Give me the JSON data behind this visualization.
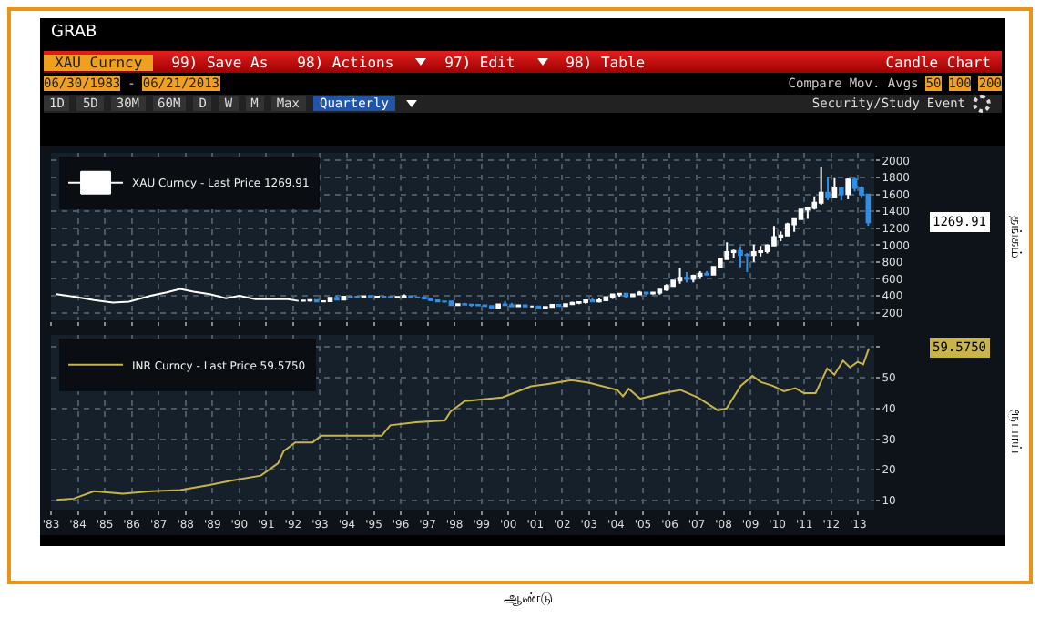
{
  "chart_data": [
    {
      "type": "candlestick",
      "title": "GRAB",
      "ylabel": "தங்கம்",
      "legend": "top left",
      "grid": true,
      "tick_labels": "y",
      "xlim": [
        1983,
        2013.6
      ],
      "xticks": [
        {
          "value": 1983,
          "label": null
        },
        {
          "value": 1984,
          "label": null
        },
        {
          "value": 1985,
          "label": null
        },
        {
          "value": 1986,
          "label": null
        },
        {
          "value": 1987,
          "label": null
        },
        {
          "value": 1988,
          "label": null
        },
        {
          "value": 1989,
          "label": null
        },
        {
          "value": 1990,
          "label": null
        },
        {
          "value": 1991,
          "label": null
        },
        {
          "value": 1992,
          "label": null
        },
        {
          "value": 1993,
          "label": null
        },
        {
          "value": 1994,
          "label": null
        },
        {
          "value": 1995,
          "label": null
        },
        {
          "value": 1996,
          "label": null
        },
        {
          "value": 1997,
          "label": null
        },
        {
          "value": 1998,
          "label": null
        },
        {
          "value": 1999,
          "label": null
        },
        {
          "value": 2000,
          "label": null
        },
        {
          "value": 2001,
          "label": null
        },
        {
          "value": 2002,
          "label": null
        },
        {
          "value": 2003,
          "label": null
        },
        {
          "value": 2004,
          "label": null
        },
        {
          "value": 2005,
          "label": null
        },
        {
          "value": 2006,
          "label": null
        },
        {
          "value": 2007,
          "label": null
        },
        {
          "value": 2008,
          "label": null
        },
        {
          "value": 2009,
          "label": null
        },
        {
          "value": 2010,
          "label": null
        },
        {
          "value": 2011,
          "label": null
        },
        {
          "value": 2012,
          "label": null
        },
        {
          "value": 2013,
          "label": null
        }
      ],
      "ylim": [
        110,
        2090
      ],
      "yticks": [
        200,
        400,
        600,
        800,
        1000,
        1200,
        1400,
        1600,
        1800,
        2000
      ],
      "annotations": [
        "XAU Curncy",
        "99) Save As",
        "98) Actions",
        "97) Edit",
        "98) Table",
        "Candle Chart",
        "06/30/1983",
        "-",
        "06/21/2013",
        "Compare",
        "Mov. Avgs",
        "50",
        "100",
        "200",
        "1D",
        "5D",
        "30M",
        "60M",
        "D",
        "W",
        "M",
        "Max",
        "Quarterly",
        "Security/Study",
        "Event",
        "1269.91"
      ],
      "series": [
        {
          "type": "line",
          "color": "#ffffff",
          "x": [
            1983.2,
            1983.85,
            1984.6,
            1985.3,
            1985.9,
            1986.7,
            1987.3,
            1987.8,
            1988.3,
            1988.9,
            1989.5,
            1990.0,
            1990.6,
            1991.2,
            1991.8,
            1992.2
          ],
          "values": [
            420,
            390,
            350,
            320,
            330,
            400,
            440,
            480,
            450,
            420,
            370,
            400,
            360,
            360,
            360,
            340
          ]
        },
        {
          "name": "XAU Curncy - Last Price 1269.91",
          "colors": [
            "#ffffff",
            "#ffffff",
            "#2f8fe8",
            "#ffffff",
            "#ffffff",
            "#2f8fe8",
            "#ffffff",
            "#2f8fe8",
            "#2f8fe8",
            "#ffffff",
            "#2f8fe8",
            "#ffffff",
            "#2f8fe8",
            "#2f8fe8",
            "#ffffff",
            "#ffffff",
            "#2f8fe8",
            "#2f8fe8",
            "#2f8fe8",
            "#2f8fe8",
            "#2f8fe8",
            "#2f8fe8",
            "#2f8fe8",
            "#ffffff",
            "#2f8fe8",
            "#2f8fe8",
            "#2f8fe8",
            "#2f8fe8",
            "#2f8fe8",
            "#ffffff",
            "#2f8fe8",
            "#2f8fe8",
            "#ffffff",
            "#2f8fe8",
            "#ffffff",
            "#2f8fe8",
            "#ffffff",
            "#ffffff",
            "#2f8fe8",
            "#ffffff",
            "#ffffff",
            "#ffffff",
            "#ffffff",
            "#2f8fe8",
            "#ffffff",
            "#ffffff",
            "#ffffff",
            "#ffffff",
            "#2f8fe8",
            "#ffffff",
            "#ffffff",
            "#2f8fe8",
            "#ffffff",
            "#ffffff",
            "#ffffff",
            "#ffffff",
            "#ffffff",
            "#2f8fe8",
            "#ffffff",
            "#ffffff",
            "#2f8fe8",
            "#ffffff",
            "#ffffff",
            "#ffffff",
            "#ffffff",
            "#2f8fe8",
            "#2f8fe8",
            "#ffffff",
            "#ffffff",
            "#ffffff",
            "#ffffff",
            "#ffffff",
            "#ffffff",
            "#ffffff",
            "#ffffff",
            "#ffffff",
            "#ffffff",
            "#ffffff",
            "#2f8fe8",
            "#ffffff",
            "#2f8fe8",
            "#ffffff",
            "#2f8fe8",
            "#2f8fe8",
            "#2f8fe8"
          ],
          "x": [
            1992.375,
            1992.625,
            1992.875,
            1993.125,
            1993.375,
            1993.625,
            1993.875,
            1994.125,
            1994.375,
            1994.625,
            1994.875,
            1995.125,
            1995.375,
            1995.625,
            1995.875,
            1996.125,
            1996.375,
            1996.625,
            1996.875,
            1997.125,
            1997.375,
            1997.625,
            1997.875,
            1998.125,
            1998.375,
            1998.625,
            1998.875,
            1999.125,
            1999.375,
            1999.625,
            1999.875,
            2000.125,
            2000.375,
            2000.625,
            2000.875,
            2001.125,
            2001.375,
            2001.625,
            2001.875,
            2002.125,
            2002.375,
            2002.625,
            2002.875,
            2003.125,
            2003.375,
            2003.625,
            2003.875,
            2004.125,
            2004.375,
            2004.625,
            2004.875,
            2005.125,
            2005.375,
            2005.625,
            2005.875,
            2006.125,
            2006.375,
            2006.625,
            2006.875,
            2007.125,
            2007.375,
            2007.625,
            2007.875,
            2008.125,
            2008.375,
            2008.625,
            2008.875,
            2009.125,
            2009.375,
            2009.625,
            2009.875,
            2010.125,
            2010.375,
            2010.625,
            2010.875,
            2011.125,
            2011.375,
            2011.625,
            2011.875,
            2012.125,
            2012.375,
            2012.625,
            2012.875,
            2013.125,
            2013.375
          ],
          "ohlc": [
            [
              341,
              346,
              334,
              343
            ],
            [
              343,
              359,
              330,
              349
            ],
            [
              349,
              351,
              330,
              333
            ],
            [
              333,
              339,
              326,
              337
            ],
            [
              337,
              382,
              336,
              377
            ],
            [
              377,
              409,
              345,
              355
            ],
            [
              355,
              392,
              350,
              391
            ],
            [
              391,
              396,
              373,
              390
            ],
            [
              390,
              396,
              373,
              386
            ],
            [
              386,
              398,
              379,
              394
            ],
            [
              394,
              398,
              378,
              383
            ],
            [
              383,
              395,
              372,
              391
            ],
            [
              391,
              396,
              381,
              387
            ],
            [
              387,
              391,
              380,
              384
            ],
            [
              384,
              395,
              380,
              387
            ],
            [
              387,
              417,
              385,
              396
            ],
            [
              396,
              397,
              378,
              382
            ],
            [
              382,
              390,
              377,
              379
            ],
            [
              379,
              387,
              366,
              369
            ],
            [
              369,
              370,
              340,
              348
            ],
            [
              348,
              354,
              330,
              334
            ],
            [
              334,
              339,
              318,
              332
            ],
            [
              332,
              336,
              283,
              290
            ],
            [
              290,
              305,
              280,
              301
            ],
            [
              301,
              316,
              290,
              296
            ],
            [
              296,
              300,
              271,
              293
            ],
            [
              293,
              300,
              286,
              288
            ],
            [
              288,
              292,
              279,
              280
            ],
            [
              280,
              291,
              257,
              261
            ],
            [
              261,
              307,
              251,
              299
            ],
            [
              299,
              339,
              288,
              290
            ],
            [
              290,
              316,
              278,
              278
            ],
            [
              278,
              294,
              270,
              288
            ],
            [
              288,
              290,
              268,
              273
            ],
            [
              273,
              275,
              263,
              273
            ],
            [
              273,
              273,
              255,
              258
            ],
            [
              258,
              280,
              256,
              270
            ],
            [
              270,
              298,
              264,
              293
            ],
            [
              293,
              293,
              273,
              279
            ],
            [
              279,
              305,
              277,
              302
            ],
            [
              302,
              330,
              300,
              318
            ],
            [
              318,
              326,
              300,
              324
            ],
            [
              324,
              350,
              307,
              347
            ],
            [
              347,
              383,
              323,
              334
            ],
            [
              334,
              372,
              320,
              346
            ],
            [
              346,
              391,
              341,
              385
            ],
            [
              385,
              417,
              364,
              416
            ],
            [
              416,
              430,
              390,
              424
            ],
            [
              424,
              431,
              372,
              394
            ],
            [
              394,
              420,
              387,
              416
            ],
            [
              416,
              456,
              406,
              438
            ],
            [
              438,
              446,
              411,
              428
            ],
            [
              428,
              440,
              413,
              437
            ],
            [
              437,
              474,
              414,
              473
            ],
            [
              473,
              538,
              457,
              517
            ],
            [
              517,
              584,
              517,
              582
            ],
            [
              582,
              730,
              543,
              614
            ],
            [
              614,
              680,
              560,
              599
            ],
            [
              599,
              650,
              560,
              636
            ],
            [
              636,
              690,
              600,
              662
            ],
            [
              662,
              692,
              640,
              650
            ],
            [
              650,
              746,
              642,
              743
            ],
            [
              743,
              842,
              722,
              834
            ],
            [
              834,
              1032,
              833,
              916
            ],
            [
              916,
              947,
              845,
              930
            ],
            [
              930,
              988,
              736,
              884
            ],
            [
              884,
              905,
              681,
              882
            ],
            [
              882,
              1007,
              801,
              916
            ],
            [
              916,
              990,
              865,
              927
            ],
            [
              927,
              1011,
              902,
              996
            ],
            [
              996,
              1227,
              996,
              1096
            ],
            [
              1096,
              1162,
              1045,
              1113
            ],
            [
              1113,
              1265,
              1106,
              1244
            ],
            [
              1244,
              1316,
              1157,
              1307
            ],
            [
              1307,
              1431,
              1307,
              1421
            ],
            [
              1421,
              1447,
              1309,
              1439
            ],
            [
              1439,
              1577,
              1420,
              1500
            ],
            [
              1500,
              1921,
              1478,
              1620
            ],
            [
              1620,
              1803,
              1531,
              1564
            ],
            [
              1564,
              1791,
              1563,
              1669
            ],
            [
              1669,
              1679,
              1527,
              1604
            ],
            [
              1604,
              1788,
              1540,
              1776
            ],
            [
              1776,
              1796,
              1635,
              1675
            ],
            [
              1675,
              1694,
              1555,
              1597
            ],
            [
              1597,
              1605,
              1230,
              1269.91
            ]
          ]
        }
      ]
    },
    {
      "type": "line",
      "xlabel": "ஆண்டு",
      "ylabel": "ரூபாய்",
      "legend": "top left",
      "grid": true,
      "xlim": [
        1983,
        2013.6
      ],
      "xticks": [
        {
          "value": 1983,
          "label": "'83"
        },
        {
          "value": 1984,
          "label": "'84"
        },
        {
          "value": 1985,
          "label": "'85"
        },
        {
          "value": 1986,
          "label": "'86"
        },
        {
          "value": 1987,
          "label": "'87"
        },
        {
          "value": 1988,
          "label": "'88"
        },
        {
          "value": 1989,
          "label": "'89"
        },
        {
          "value": 1990,
          "label": "'90"
        },
        {
          "value": 1991,
          "label": "'91"
        },
        {
          "value": 1992,
          "label": "'92"
        },
        {
          "value": 1993,
          "label": "'93"
        },
        {
          "value": 1994,
          "label": "'94"
        },
        {
          "value": 1995,
          "label": "'95"
        },
        {
          "value": 1996,
          "label": "'96"
        },
        {
          "value": 1997,
          "label": "'97"
        },
        {
          "value": 1998,
          "label": "'98"
        },
        {
          "value": 1999,
          "label": "'99"
        },
        {
          "value": 2000,
          "label": "'00"
        },
        {
          "value": 2001,
          "label": "'01"
        },
        {
          "value": 2002,
          "label": "'02"
        },
        {
          "value": 2003,
          "label": "'03"
        },
        {
          "value": 2004,
          "label": "'04"
        },
        {
          "value": 2005,
          "label": "'05"
        },
        {
          "value": 2006,
          "label": "'06"
        },
        {
          "value": 2007,
          "label": "'07"
        },
        {
          "value": 2008,
          "label": "'08"
        },
        {
          "value": 2009,
          "label": "'09"
        },
        {
          "value": 2010,
          "label": "'10"
        },
        {
          "value": 2011,
          "label": "'11"
        },
        {
          "value": 2012,
          "label": "'12"
        },
        {
          "value": 2013,
          "label": "'13"
        }
      ],
      "ylim": [
        7,
        64
      ],
      "yticks": [
        10,
        20,
        30,
        40,
        50,
        {
          "value": 60,
          "label": null
        }
      ],
      "annotations": [
        "59.5750"
      ],
      "series": [
        {
          "name": "INR Curncy - Last Price 59.5750",
          "color": "#c8b44a",
          "x": [
            1983.21,
            1983.85,
            1984.6,
            1985.67,
            1986.74,
            1987.81,
            1988.88,
            1989.73,
            1990.8,
            1991.12,
            1991.44,
            1991.65,
            1992.08,
            1992.72,
            1993.04,
            1995.29,
            1995.61,
            1996.57,
            1997.64,
            1997.85,
            1998.38,
            1999.77,
            2000.84,
            2001.48,
            2002.34,
            2002.98,
            2004.05,
            2004.26,
            2004.47,
            2004.9,
            2005.76,
            2006.4,
            2007.04,
            2007.79,
            2008.11,
            2008.64,
            2009.07,
            2009.39,
            2009.82,
            2010.24,
            2010.67,
            2010.99,
            2011.42,
            2011.85,
            2012.12,
            2012.44,
            2012.7,
            2012.98,
            2013.19,
            2013.4
          ],
          "values": [
            10.2,
            10.6,
            13.0,
            12.2,
            13.0,
            13.4,
            15.0,
            16.5,
            18.1,
            20.1,
            22.1,
            26.1,
            28.9,
            28.9,
            31.1,
            31.1,
            34.5,
            35.5,
            36.1,
            39.0,
            42.4,
            43.6,
            47.2,
            48.0,
            49.2,
            48.4,
            46.0,
            44.0,
            46.4,
            43.2,
            45.0,
            46.0,
            43.6,
            39.4,
            40.0,
            47.4,
            50.6,
            48.6,
            47.4,
            45.6,
            46.6,
            45.0,
            45.0,
            53.0,
            51.0,
            55.6,
            53.4,
            55.2,
            54.4,
            59.575
          ]
        }
      ]
    }
  ]
}
